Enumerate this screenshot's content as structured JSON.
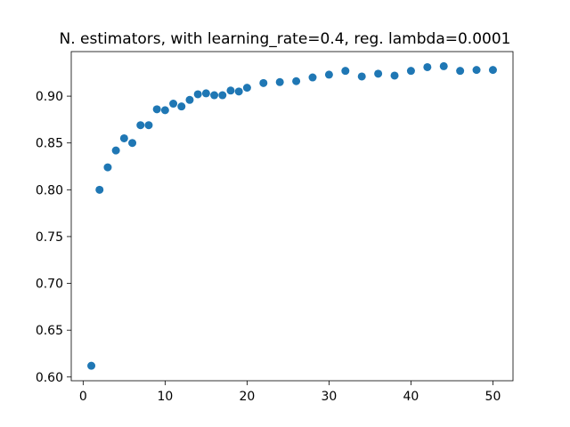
{
  "chart_data": {
    "type": "scatter",
    "title": "N. estimators, with learning_rate=0.4, reg. lambda=0.0001",
    "xlabel": "",
    "ylabel": "",
    "xlim": [
      -1.45,
      52.45
    ],
    "ylim": [
      0.596,
      0.9476
    ],
    "x_ticks": [
      0,
      10,
      20,
      30,
      40,
      50
    ],
    "y_ticks": [
      0.6,
      0.65,
      0.7,
      0.75,
      0.8,
      0.85,
      0.9
    ],
    "grid": false,
    "marker_color": "#1f77b4",
    "series": [
      {
        "x": [
          1,
          2,
          3,
          4,
          5,
          6,
          7,
          8,
          9,
          10,
          11,
          12,
          13,
          14,
          15,
          16,
          17,
          18,
          19,
          20,
          22,
          24,
          26,
          28,
          30,
          32,
          34,
          36,
          38,
          40,
          42,
          44,
          46,
          48,
          50
        ],
        "y": [
          0.612,
          0.8,
          0.824,
          0.842,
          0.855,
          0.85,
          0.869,
          0.869,
          0.886,
          0.885,
          0.892,
          0.889,
          0.896,
          0.902,
          0.903,
          0.901,
          0.901,
          0.906,
          0.905,
          0.909,
          0.914,
          0.915,
          0.916,
          0.92,
          0.923,
          0.927,
          0.921,
          0.924,
          0.922,
          0.927,
          0.931,
          0.932,
          0.927,
          0.928,
          0.928
        ]
      }
    ]
  }
}
